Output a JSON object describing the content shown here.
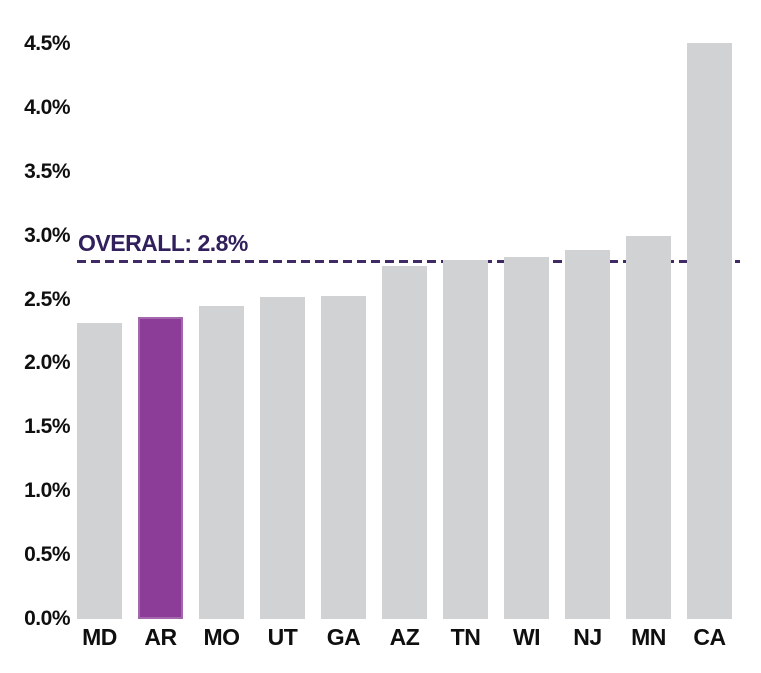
{
  "chart_data": {
    "type": "bar",
    "title": "",
    "xlabel": "",
    "ylabel": "",
    "categories": [
      "MD",
      "AR",
      "MO",
      "UT",
      "GA",
      "AZ",
      "TN",
      "WI",
      "NJ",
      "MN",
      "CA"
    ],
    "values": [
      2.32,
      2.36,
      2.45,
      2.52,
      2.53,
      2.76,
      2.81,
      2.83,
      2.89,
      3.0,
      4.51
    ],
    "value_unit": "%",
    "highlight_category": "AR",
    "y_ticks": [
      "4.5%",
      "4.0%",
      "3.5%",
      "3.0%",
      "2.5%",
      "2.0%",
      "1.5%",
      "1.0%",
      "0.5%",
      "0.0%"
    ],
    "y_tick_values": [
      4.5,
      4.0,
      3.5,
      3.0,
      2.5,
      2.0,
      1.5,
      1.0,
      0.5,
      0.0
    ],
    "ylim": [
      0,
      4.75
    ],
    "grid": false,
    "legend": "none",
    "annotation": {
      "label": "OVERALL: 2.8%",
      "value": 2.8,
      "line_style": "dashed"
    },
    "colors": {
      "bar_default": "#D1D2D4",
      "bar_highlight": "#8B3D97",
      "annotation_text": "#31205B",
      "annotation_line": "#3F2A66",
      "axis_text": "#0F0F0F",
      "background": "#FFFFFF"
    }
  }
}
